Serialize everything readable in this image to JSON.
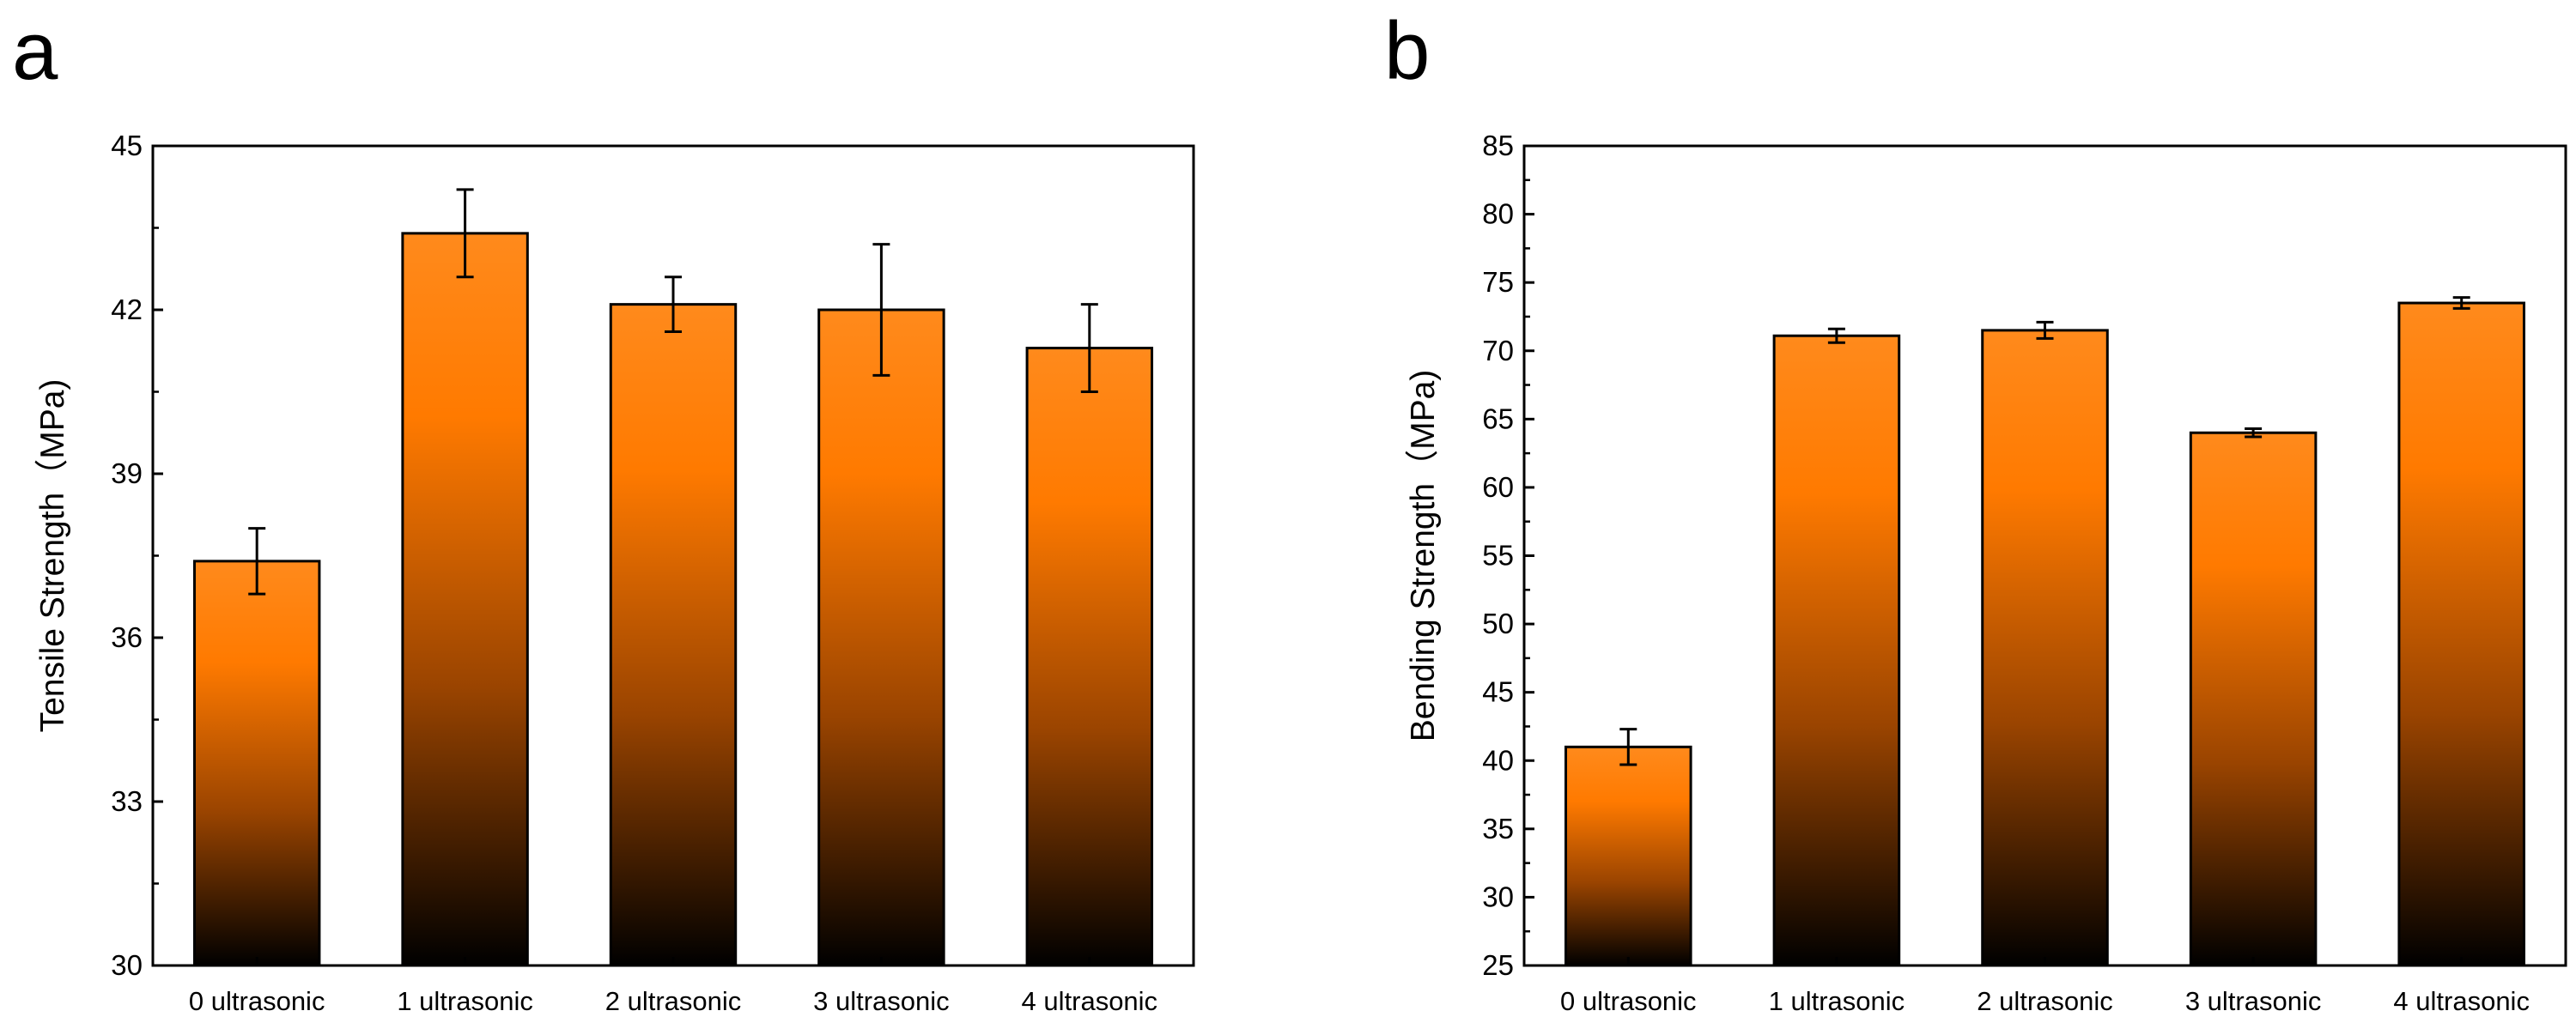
{
  "panels": {
    "a": "a",
    "b": "b"
  },
  "chart_data": [
    {
      "type": "bar",
      "panel": "a",
      "ylabel": "Tensile Strength（MPa)",
      "ylim": [
        30,
        45
      ],
      "yticks": [
        30,
        33,
        36,
        39,
        42,
        45
      ],
      "categories": [
        "0 ultrasonic",
        "1 ultrasonic",
        "2 ultrasonic",
        "3 ultrasonic",
        "4 ultrasonic"
      ],
      "values": [
        37.4,
        43.4,
        42.1,
        42.0,
        41.3
      ],
      "errors": [
        0.6,
        0.8,
        0.5,
        1.2,
        0.8
      ],
      "bar_gradient": [
        "#ff8a1c",
        "#ff7a00",
        "#9a4400",
        "#000000"
      ]
    },
    {
      "type": "bar",
      "panel": "b",
      "ylabel": "Bending Strength（MPa)",
      "ylim": [
        25,
        85
      ],
      "yticks": [
        25,
        30,
        35,
        40,
        45,
        50,
        55,
        60,
        65,
        70,
        75,
        80,
        85
      ],
      "categories": [
        "0 ultrasonic",
        "1 ultrasonic",
        "2 ultrasonic",
        "3 ultrasonic",
        "4 ultrasonic"
      ],
      "values": [
        41.0,
        71.1,
        71.5,
        64.0,
        73.5
      ],
      "errors": [
        1.3,
        0.5,
        0.6,
        0.3,
        0.4
      ],
      "bar_gradient": [
        "#ff8a1c",
        "#ff7a00",
        "#9a4400",
        "#000000"
      ]
    }
  ]
}
